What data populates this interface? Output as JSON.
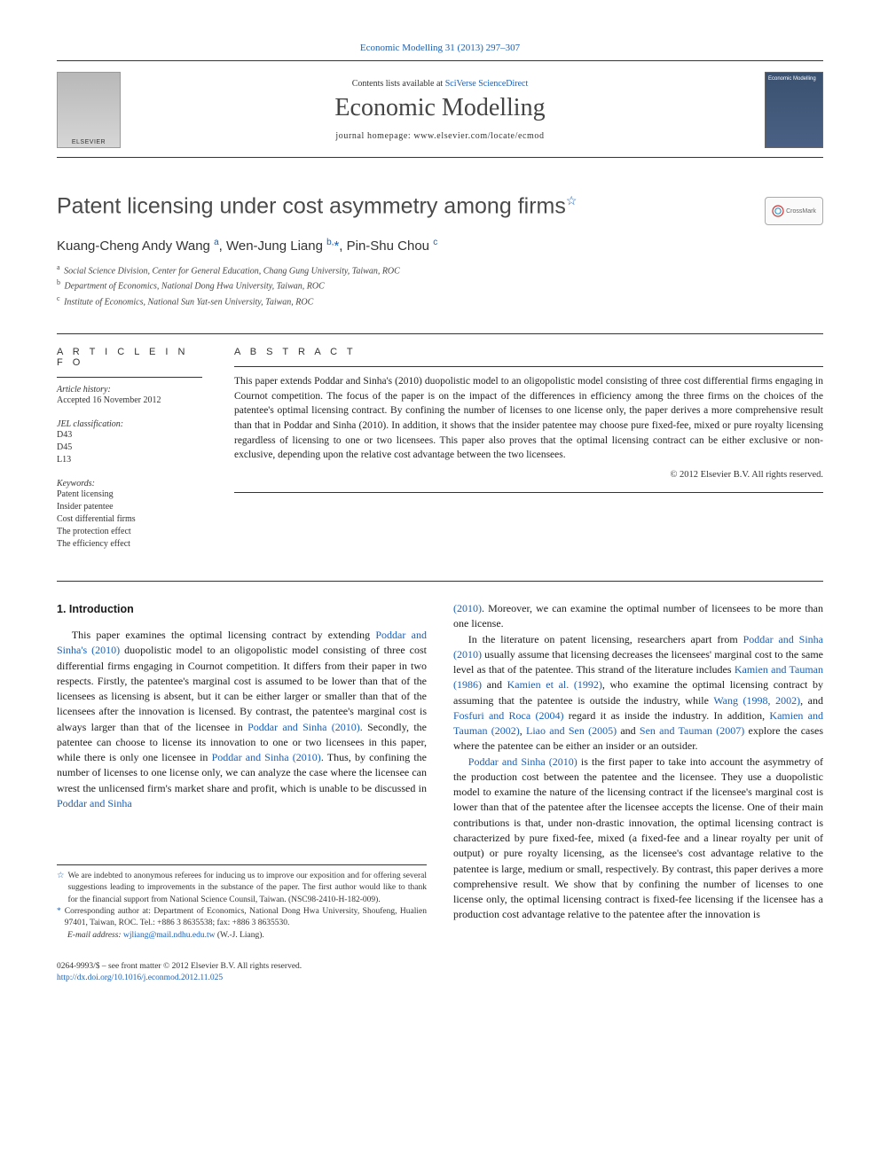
{
  "colors": {
    "link": "#1a5fb4",
    "text": "#1a1a1a",
    "title_gray": "#4a4a4a",
    "rule": "#333333"
  },
  "header": {
    "journal_ref": "Economic Modelling 31 (2013) 297–307",
    "contents_prefix": "Contents lists available at ",
    "contents_link": "SciVerse ScienceDirect",
    "journal_name": "Economic Modelling",
    "homepage_label": "journal homepage: ",
    "homepage_url": "www.elsevier.com/locate/ecmod",
    "cover_snippet": "Economic Modelling"
  },
  "crossmark": "CrossMark",
  "title": "Patent licensing under cost asymmetry among firms",
  "title_star": "☆",
  "authors_html": "Kuang-Cheng Andy Wang <sup>a</sup>, Wen-Jung Liang <sup>b,</sup><span class=\"corr\">*</span>, Pin-Shu Chou <sup>c</sup>",
  "affiliations": [
    {
      "mark": "a",
      "text": "Social Science Division, Center for General Education, Chang Gung University, Taiwan, ROC"
    },
    {
      "mark": "b",
      "text": "Department of Economics, National Dong Hwa University, Taiwan, ROC"
    },
    {
      "mark": "c",
      "text": "Institute of Economics, National Sun Yat-sen University, Taiwan, ROC"
    }
  ],
  "article_info_label": "A R T I C L E   I N F O",
  "abstract_label": "A B S T R A C T",
  "history": {
    "label": "Article history:",
    "text": "Accepted 16 November 2012"
  },
  "jel": {
    "label": "JEL classification:",
    "codes": [
      "D43",
      "D45",
      "L13"
    ]
  },
  "keywords": {
    "label": "Keywords:",
    "items": [
      "Patent licensing",
      "Insider patentee",
      "Cost differential firms",
      "The protection effect",
      "The efficiency effect"
    ]
  },
  "abstract": "This paper extends Poddar and Sinha's (2010) duopolistic model to an oligopolistic model consisting of three cost differential firms engaging in Cournot competition. The focus of the paper is on the impact of the differences in efficiency among the three firms on the choices of the patentee's optimal licensing contract. By confining the number of licenses to one license only, the paper derives a more comprehensive result than that in Poddar and Sinha (2010). In addition, it shows that the insider patentee may choose pure fixed-fee, mixed or pure royalty licensing regardless of licensing to one or two licensees. This paper also proves that the optimal licensing contract can be either exclusive or non-exclusive, depending upon the relative cost advantage between the two licensees.",
  "abstract_copyright": "© 2012 Elsevier B.V. All rights reserved.",
  "intro_heading": "1. Introduction",
  "col1_p1a": "This paper examines the optimal licensing contract by extending ",
  "col1_p1_link1": "Poddar and Sinha's (2010)",
  "col1_p1b": " duopolistic model to an oligopolistic model consisting of three cost differential firms engaging in Cournot competition. It differs from their paper in two respects. Firstly, the patentee's marginal cost is assumed to be lower than that of the licensees as licensing is absent, but it can be either larger or smaller than that of the licensees after the innovation is licensed. By contrast, the patentee's marginal cost is always larger than that of the licensee in ",
  "col1_p1_link2": "Poddar and Sinha (2010)",
  "col1_p1c": ". Secondly, the patentee can choose to license its innovation to one or two licensees in this paper, while there is only one licensee in ",
  "col1_p1_link3": "Poddar and Sinha (2010)",
  "col1_p1d": ". Thus, by confining the number of licenses to one license only, we can analyze the case where the licensee can wrest the unlicensed firm's market share and profit, which is unable to be discussed in ",
  "col1_p1_link4": "Poddar and Sinha",
  "col2_p1a": "(2010)",
  "col2_p1b": ". Moreover, we can examine the optimal number of licensees to be more than one license.",
  "col2_p2a": "In the literature on patent licensing, researchers apart from ",
  "col2_p2_l1": "Poddar and Sinha (2010)",
  "col2_p2b": " usually assume that licensing decreases the licensees' marginal cost to the same level as that of the patentee. This strand of the literature includes ",
  "col2_p2_l2": "Kamien and Tauman (1986)",
  "col2_p2c": " and ",
  "col2_p2_l3": "Kamien et al. (1992)",
  "col2_p2d": ", who examine the optimal licensing contract by assuming that the patentee is outside the industry, while ",
  "col2_p2_l4": "Wang (1998, 2002)",
  "col2_p2e": ", and ",
  "col2_p2_l5": "Fosfuri and Roca (2004)",
  "col2_p2f": " regard it as inside the industry. In addition, ",
  "col2_p2_l6": "Kamien and Tauman (2002)",
  "col2_p2g": ", ",
  "col2_p2_l7": "Liao and Sen (2005)",
  "col2_p2h": " and ",
  "col2_p2_l8": "Sen and Tauman (2007)",
  "col2_p2i": " explore the cases where the patentee can be either an insider or an outsider.",
  "col2_p3_l1": "Poddar and Sinha (2010)",
  "col2_p3b": " is the first paper to take into account the asymmetry of the production cost between the patentee and the licensee. They use a duopolistic model to examine the nature of the licensing contract if the licensee's marginal cost is lower than that of the patentee after the licensee accepts the license. One of their main contributions is that, under non-drastic innovation, the optimal licensing contract is characterized by pure fixed-fee, mixed (a fixed-fee and a linear royalty per unit of output) or pure royalty licensing, as the licensee's cost advantage relative to the patentee is large, medium or small, respectively. By contrast, this paper derives a more comprehensive result. We show that by confining the number of licenses to one license only, the optimal licensing contract is fixed-fee licensing if the licensee has a production cost advantage relative to the patentee after the innovation is",
  "footnote_star": "☆",
  "footnote_star_text": "We are indebted to anonymous referees for inducing us to improve our exposition and for offering several suggestions leading to improvements in the substance of the paper. The first author would like to thank for the financial support from National Science Counsil, Taiwan. (NSC98-2410-H-182-009).",
  "footnote_corr_mark": "*",
  "footnote_corr_text": "Corresponding author at: Department of Economics, National Dong Hwa University, Shoufeng, Hualien 97401, Taiwan, ROC. Tel.: +886 3 8635538; fax: +886 3 8635530.",
  "footnote_email_label": "E-mail address:",
  "footnote_email": "wjliang@mail.ndhu.edu.tw",
  "footnote_email_suffix": " (W.-J. Liang).",
  "footer_line1": "0264-9993/$ – see front matter © 2012 Elsevier B.V. All rights reserved.",
  "footer_doi": "http://dx.doi.org/10.1016/j.econmod.2012.11.025"
}
